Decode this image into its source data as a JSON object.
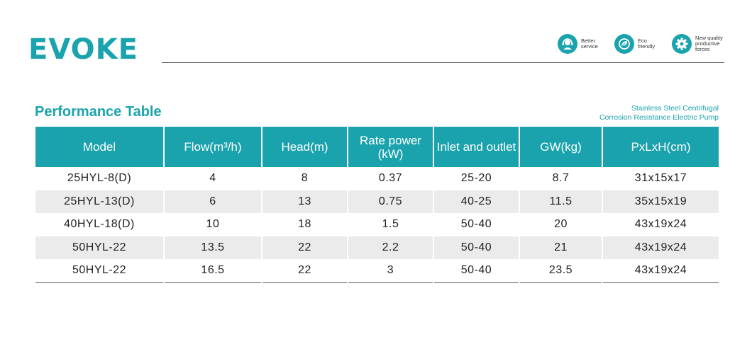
{
  "brand": {
    "logo_text": "EVOKE",
    "accent_color": "#1ba3ad"
  },
  "features": [
    {
      "icon": "headset-icon",
      "label_lines": [
        "Better",
        "service"
      ]
    },
    {
      "icon": "eco-leaf-icon",
      "label_lines": [
        "Eco",
        "friendly"
      ]
    },
    {
      "icon": "gear-icon",
      "label_lines": [
        "New quality",
        "productive",
        "forces"
      ]
    }
  ],
  "section": {
    "title": "Performance Table",
    "subtitle_lines": [
      "Stainless Steel Centrifugal",
      "Corrosion Resistance Electric Pump"
    ]
  },
  "table": {
    "headers": [
      "Model",
      "Flow(m³/h)",
      "Head(m)",
      "Rate power (kW)",
      "Inlet and outlet",
      "GW(kg)",
      "PxLxH(cm)"
    ],
    "rows": [
      [
        "25HYL-8(D)",
        "4",
        "8",
        "0.37",
        "25-20",
        "8.7",
        "31x15x17"
      ],
      [
        "25HYL-13(D)",
        "6",
        "13",
        "0.75",
        "40-25",
        "11.5",
        "35x15x19"
      ],
      [
        "40HYL-18(D)",
        "10",
        "18",
        "1.5",
        "50-40",
        "20",
        "43x19x24"
      ],
      [
        "50HYL-22",
        "13.5",
        "22",
        "2.2",
        "50-40",
        "21",
        "43x19x24"
      ],
      [
        "50HYL-22",
        "16.5",
        "22",
        "3",
        "50-40",
        "23.5",
        "43x19x24"
      ]
    ]
  }
}
